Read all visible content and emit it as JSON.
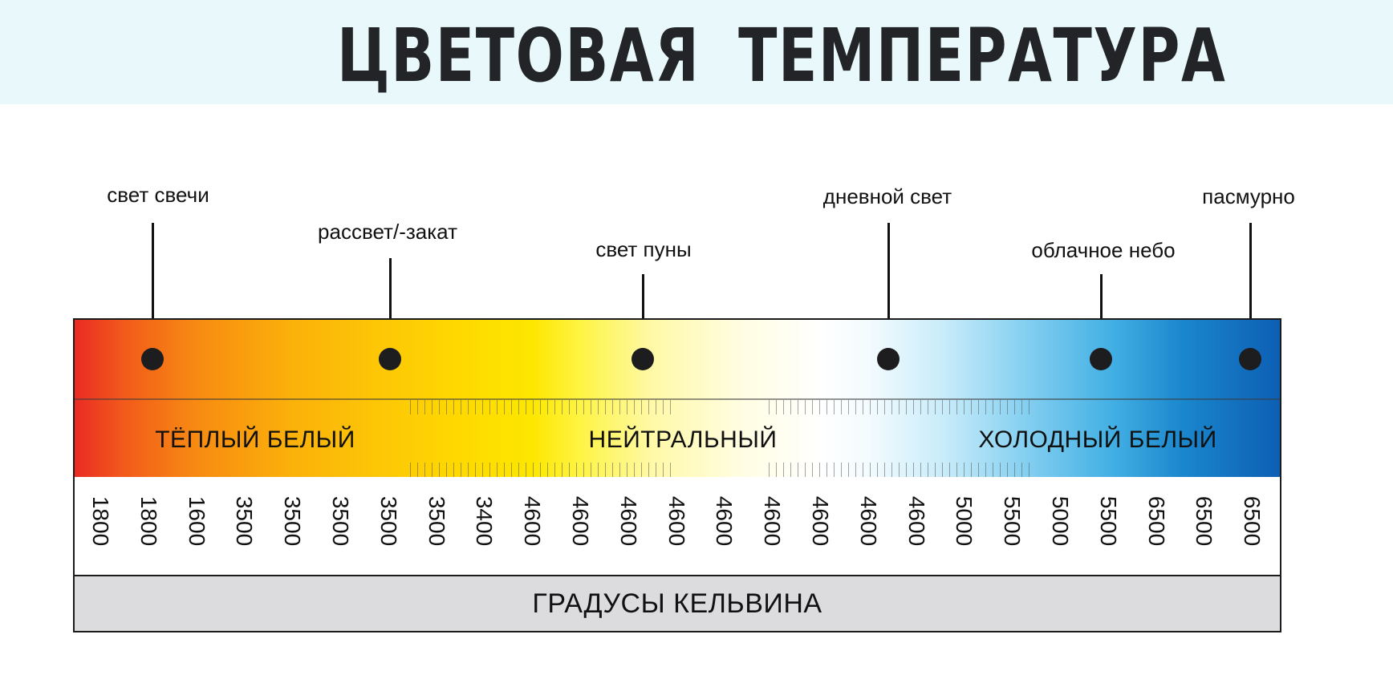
{
  "title": "ЦВЕТОВАЯ ТЕМПЕРАТУРА",
  "markers": [
    {
      "label": "свет свечи"
    },
    {
      "label": "рассвет/-закат"
    },
    {
      "label": "свет пуны"
    },
    {
      "label": "дневной свет"
    },
    {
      "label": "облачное небо"
    },
    {
      "label": "пасмурно"
    }
  ],
  "zones": [
    {
      "label": "ТЁПЛЫЙ БЕЛЫЙ"
    },
    {
      "label": "НЕЙТРАЛЬНЫЙ"
    },
    {
      "label": "ХОЛОДНЫЙ БЕЛЫЙ"
    }
  ],
  "scale_values": [
    "1800",
    "1800",
    "1600",
    "3500",
    "3500",
    "3500",
    "3500",
    "3500",
    "3400",
    "4600",
    "4600",
    "4600",
    "4600",
    "4600",
    "4600",
    "4600",
    "4600",
    "4600",
    "5000",
    "5500",
    "5000",
    "5500",
    "6500",
    "6500",
    "6500"
  ],
  "footer_label": "ГРАДУСЫ КЕЛЬВИНА",
  "colors": {
    "warm": "#ea2b24",
    "yellow": "#fde700",
    "neutral": "#ffffff",
    "cool": "#0d5fb3",
    "header_bg": "#e8f8fb",
    "footer_bg": "#dcdcdf"
  }
}
